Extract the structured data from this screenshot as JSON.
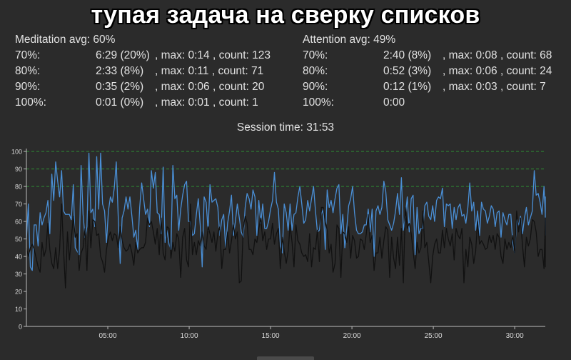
{
  "title": "тупая задача на сверку списков",
  "meditation": {
    "header": "Meditation avg: 60%",
    "rows": [
      {
        "label": "70%:",
        "time": "6:29 (20%)",
        "extra": ", max: 0:14 , count: 123"
      },
      {
        "label": "80%:",
        "time": "2:33 (8%)",
        "extra": ", max: 0:11 , count: 71"
      },
      {
        "label": "90%:",
        "time": "0:35 (2%)",
        "extra": ", max: 0:06 , count: 20"
      },
      {
        "label": "100%:",
        "time": "0:01 (0%)",
        "extra": ", max: 0:01 , count: 1"
      }
    ]
  },
  "attention": {
    "header": "Attention avg: 49%",
    "rows": [
      {
        "label": "70%:",
        "time": "2:40 (8%)",
        "extra": ", max: 0:08 , count: 68"
      },
      {
        "label": "80%:",
        "time": "0:52 (3%)",
        "extra": ", max: 0:06 , count: 24"
      },
      {
        "label": "90%:",
        "time": "0:12 (1%)",
        "extra": ", max: 0:03 , count: 7"
      },
      {
        "label": "100%:",
        "time": "0:00",
        "extra": ""
      }
    ]
  },
  "session": "Session time: 31:53",
  "chart_data": {
    "type": "line",
    "x_unit": "minutes",
    "xlim": [
      0,
      31.88
    ],
    "ylim": [
      0,
      100
    ],
    "x_ticks": [
      {
        "value": 5,
        "label": "05:00"
      },
      {
        "value": 10,
        "label": "10:00"
      },
      {
        "value": 15,
        "label": "15:00"
      },
      {
        "value": 20,
        "label": "20:00"
      },
      {
        "value": 25,
        "label": "25:00"
      },
      {
        "value": 30,
        "label": "30:00"
      }
    ],
    "y_ticks": [
      "0",
      "10",
      "20",
      "30",
      "40",
      "50",
      "60",
      "70",
      "80",
      "90",
      "100"
    ],
    "thresholds": [
      80,
      90,
      100
    ],
    "threshold_color": "#2e7d32",
    "sampling_interval_min": 0.12,
    "series": [
      {
        "color": "#4a8fd6",
        "values": [
          50,
          70,
          34,
          32,
          58,
          58,
          46,
          65,
          58,
          62,
          65,
          72,
          53,
          87,
          72,
          94,
          83,
          74,
          89,
          66,
          64,
          64,
          64,
          61,
          81,
          45,
          43,
          41,
          92,
          64,
          51,
          57,
          99,
          65,
          67,
          57,
          97,
          67,
          99,
          70,
          66,
          48,
          66,
          74,
          71,
          79,
          94,
          63,
          36,
          62,
          66,
          74,
          67,
          74,
          63,
          51,
          55,
          44,
          68,
          82,
          73,
          64,
          67,
          57,
          89,
          79,
          88,
          65,
          64,
          53,
          91,
          48,
          55,
          47,
          44,
          92,
          73,
          75,
          55,
          67,
          75,
          81,
          83,
          60,
          60,
          52,
          53,
          64,
          73,
          58,
          34,
          74,
          71,
          55,
          81,
          71,
          72,
          73,
          68,
          52,
          61,
          64,
          45,
          59,
          66,
          75,
          52,
          60,
          70,
          62,
          54,
          51,
          68,
          76,
          73,
          67,
          78,
          74,
          52,
          72,
          59,
          70,
          56,
          56,
          60,
          67,
          72,
          88,
          71,
          67,
          47,
          42,
          70,
          65,
          55,
          70,
          55,
          64,
          65,
          74,
          80,
          70,
          59,
          61,
          72,
          66,
          73,
          80,
          66,
          54,
          55,
          64,
          67,
          44,
          78,
          68,
          72,
          65,
          73,
          79,
          81,
          53,
          64,
          45,
          56,
          69,
          73,
          80,
          65,
          55,
          53,
          53,
          54,
          58,
          58,
          67,
          54,
          67,
          40,
          66,
          69,
          64,
          68,
          83,
          77,
          61,
          58,
          55,
          59,
          66,
          76,
          64,
          85,
          55,
          63,
          74,
          54,
          73,
          75,
          41,
          68,
          53,
          56,
          56,
          69,
          71,
          63,
          61,
          69,
          60,
          72,
          74,
          73,
          79,
          57,
          70,
          69,
          70,
          56,
          68,
          61,
          68,
          70,
          63,
          64,
          59,
          68,
          82,
          66,
          71,
          55,
          66,
          52,
          71,
          67,
          66,
          59,
          63,
          69,
          67,
          57,
          65,
          66,
          51,
          65,
          61,
          58,
          64,
          64,
          48,
          42,
          61,
          58,
          63,
          53,
          62,
          68,
          58,
          62,
          66,
          89,
          75,
          76,
          71,
          64,
          80,
          64,
          53,
          66,
          61,
          74,
          71,
          64,
          60,
          68,
          57,
          69,
          52
        ]
      },
      {
        "color": "#111111",
        "values": [
          45,
          40,
          45,
          47,
          44,
          39,
          34,
          31,
          48,
          40,
          44,
          59,
          44,
          36,
          33,
          45,
          33,
          44,
          70,
          44,
          22,
          54,
          38,
          50,
          63,
          51,
          53,
          32,
          42,
          45,
          56,
          32,
          66,
          45,
          61,
          60,
          52,
          53,
          40,
          37,
          31,
          44,
          51,
          54,
          49,
          53,
          52,
          45,
          57,
          49,
          45,
          43,
          44,
          47,
          42,
          35,
          48,
          42,
          44,
          45,
          45,
          48,
          62,
          58,
          60,
          54,
          47,
          56,
          41,
          62,
          42,
          38,
          57,
          56,
          39,
          48,
          43,
          53,
          50,
          28,
          51,
          56,
          38,
          34,
          70,
          41,
          48,
          41,
          49,
          46,
          54,
          46,
          44,
          57,
          53,
          48,
          54,
          43,
          53,
          57,
          33,
          44,
          44,
          54,
          42,
          49,
          58,
          50,
          54,
          25,
          26,
          56,
          63,
          59,
          44,
          44,
          41,
          50,
          48,
          56,
          62,
          49,
          54,
          44,
          50,
          50,
          59,
          47,
          53,
          56,
          33,
          51,
          43,
          36,
          43,
          58,
          48,
          34,
          58,
          49,
          47,
          42,
          40,
          41,
          37,
          53,
          34,
          45,
          44,
          55,
          37,
          68,
          68,
          60,
          55,
          42,
          47,
          31,
          36,
          58,
          56,
          28,
          54,
          53,
          48,
          57,
          39,
          52,
          49,
          39,
          40,
          50,
          49,
          44,
          53,
          64,
          48,
          52,
          32,
          42,
          42,
          51,
          39,
          49,
          57,
          55,
          28,
          51,
          39,
          33,
          51,
          35,
          56,
          25,
          68,
          56,
          59,
          53,
          43,
          33,
          48,
          42,
          45,
          66,
          45,
          48,
          37,
          25,
          40,
          47,
          50,
          42,
          42,
          55,
          45,
          56,
          50,
          46,
          53,
          38,
          56,
          52,
          50,
          56,
          25,
          44,
          34,
          51,
          47,
          36,
          43,
          60,
          47,
          49,
          47,
          44,
          45,
          52,
          48,
          52,
          44,
          53,
          51,
          40,
          36,
          50,
          44,
          48,
          45,
          52,
          42,
          66,
          54,
          62,
          46,
          34,
          51,
          46,
          50,
          61,
          60,
          54,
          40,
          44,
          44,
          33,
          61,
          40,
          46,
          47,
          35,
          46,
          52,
          49,
          43,
          50,
          52,
          59,
          53,
          62,
          51,
          61,
          53,
          59,
          56,
          34,
          49,
          45
        ]
      }
    ]
  }
}
